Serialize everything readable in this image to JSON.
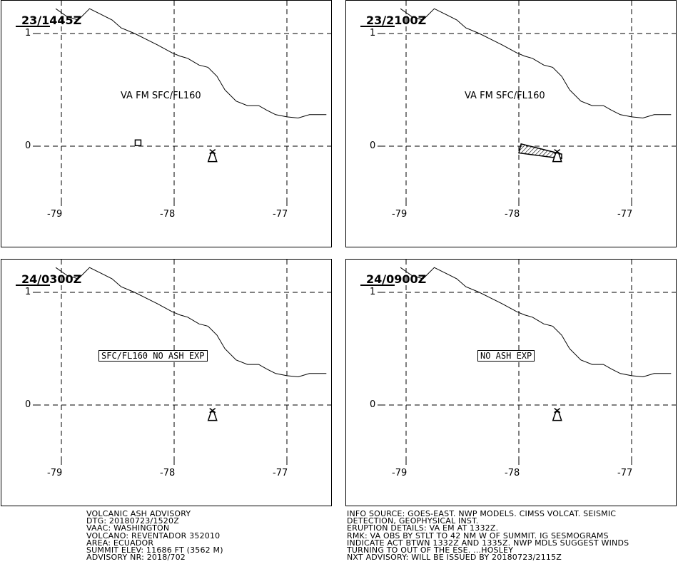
{
  "map": {
    "y_ticks": [
      "1",
      "0"
    ],
    "x_ticks": [
      "-79",
      "-78",
      "-77"
    ],
    "coastline": [
      [
        -79.05,
        1.22
      ],
      [
        -78.95,
        1.15
      ],
      [
        -78.85,
        1.12
      ],
      [
        -78.75,
        1.22
      ],
      [
        -78.65,
        1.17
      ],
      [
        -78.55,
        1.12
      ],
      [
        -78.47,
        1.05
      ],
      [
        -78.35,
        1.0
      ],
      [
        -78.25,
        0.95
      ],
      [
        -78.15,
        0.9
      ],
      [
        -78.02,
        0.83
      ],
      [
        -77.95,
        0.8
      ],
      [
        -77.88,
        0.78
      ],
      [
        -77.78,
        0.72
      ],
      [
        -77.7,
        0.7
      ],
      [
        -77.62,
        0.62
      ],
      [
        -77.55,
        0.5
      ],
      [
        -77.45,
        0.4
      ],
      [
        -77.35,
        0.36
      ],
      [
        -77.25,
        0.36
      ],
      [
        -77.18,
        0.32
      ],
      [
        -77.1,
        0.28
      ],
      [
        -77.0,
        0.26
      ],
      [
        -76.9,
        0.25
      ],
      [
        -76.8,
        0.28
      ],
      [
        -76.7,
        0.28
      ],
      [
        -76.65,
        0.28
      ]
    ],
    "volcano": {
      "lon": -77.66,
      "lat": -0.08
    }
  },
  "panels": [
    {
      "title": "23/1445Z",
      "ash_label": "VA FM SFC/FL160",
      "ash_style": "plain",
      "ash_marker": {
        "lon": -78.32,
        "lat": 0.03
      }
    },
    {
      "title": "23/2100Z",
      "ash_label": "VA FM SFC/FL160",
      "ash_style": "plain",
      "ash_polygon": [
        [
          -77.98,
          0.02
        ],
        [
          -77.62,
          -0.07
        ],
        [
          -77.62,
          -0.11
        ],
        [
          -78.0,
          -0.06
        ]
      ]
    },
    {
      "title": "24/0300Z",
      "ash_label": "SFC/FL160 NO ASH EXP",
      "ash_style": "boxed"
    },
    {
      "title": "24/0900Z",
      "ash_label": "NO ASH EXP",
      "ash_style": "boxed"
    }
  ],
  "advisory": {
    "left_lines": [
      "VOLCANIC ASH ADVISORY",
      "DTG: 20180723/1520Z",
      "VAAC: WASHINGTON",
      "VOLCANO: REVENTADOR 352010",
      "AREA: ECUADOR",
      "SUMMIT ELEV: 11686 FT (3562 M)",
      "ADVISORY NR: 2018/702"
    ],
    "right_lines": [
      "INFO SOURCE: GOES-EAST. NWP MODELS. CIMSS VOLCAT. SEISMIC",
      "DETECTION, GEOPHYSICAL INST.",
      "ERUPTION DETAILS: VA EM AT 1332Z.",
      "RMK: VA OBS BY STLT TO 42 NM W OF SUMMIT. IG SESMOGRAMS",
      "INDICATE ACT BTWN 1332Z AND 1335Z. NWP MDLS SUGGEST WINDS",
      "TURNING TO OUT OF THE ESE. ...HOSLEY",
      "NXT ADVISORY: WILL BE ISSUED BY 20180723/2115Z"
    ]
  },
  "colors": {
    "line": "#000000",
    "background": "#ffffff"
  }
}
